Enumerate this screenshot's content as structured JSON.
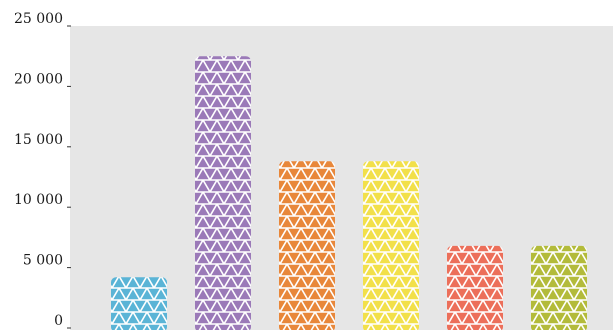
{
  "chart_data": {
    "type": "bar",
    "title": "",
    "xlabel": "",
    "ylabel": "",
    "ylim": [
      0,
      25000
    ],
    "yticks": [
      {
        "value": 0,
        "label": "0"
      },
      {
        "value": 5000,
        "label": "5 000"
      },
      {
        "value": 10000,
        "label": "10 000"
      },
      {
        "value": 15000,
        "label": "15 000"
      },
      {
        "value": 20000,
        "label": "20 000"
      },
      {
        "value": 25000,
        "label": "25 000"
      }
    ],
    "values": [
      4200,
      22500,
      13800,
      13800,
      6800,
      6800
    ],
    "colors": [
      "#5ab4d6",
      "#9b7ab8",
      "#e8873a",
      "#f2e04a",
      "#ec6f5a",
      "#b3bb3a"
    ],
    "pattern": "triangles",
    "plot_background": "#e6e6e6",
    "grid": false,
    "legend": "none"
  }
}
